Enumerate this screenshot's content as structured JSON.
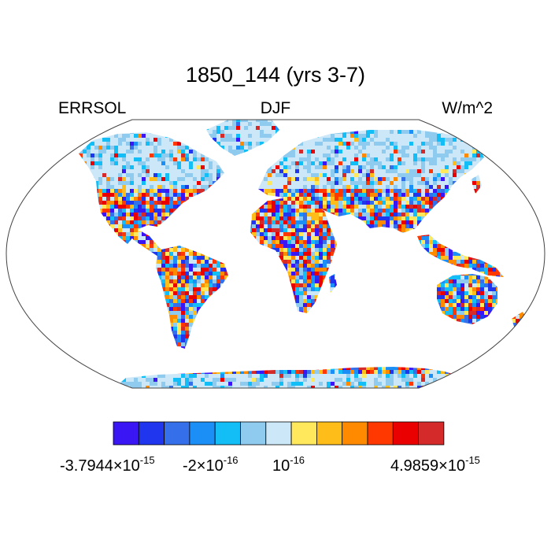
{
  "title": "1850_144 (yrs 3-7)",
  "left_label": "ERRSOL",
  "center_label": "DJF",
  "right_label": "W/m^2",
  "colorbar": {
    "colors": [
      "#3b16f5",
      "#1f36ee",
      "#3570ea",
      "#1b8ff5",
      "#13bdf5",
      "#8fcbee",
      "#cce8f8",
      "#ffe85b",
      "#ffbd1a",
      "#ff8a00",
      "#ff3800",
      "#ea0000",
      "#d52a2a"
    ],
    "labels": [
      {
        "mantissa": "-3.7944",
        "exponent": "-15"
      },
      {
        "mantissa": "-2",
        "exponent": "-16"
      },
      {
        "mantissa": "",
        "exponent": "-16"
      },
      {
        "mantissa": "4.9859",
        "exponent": "-15"
      }
    ]
  }
}
